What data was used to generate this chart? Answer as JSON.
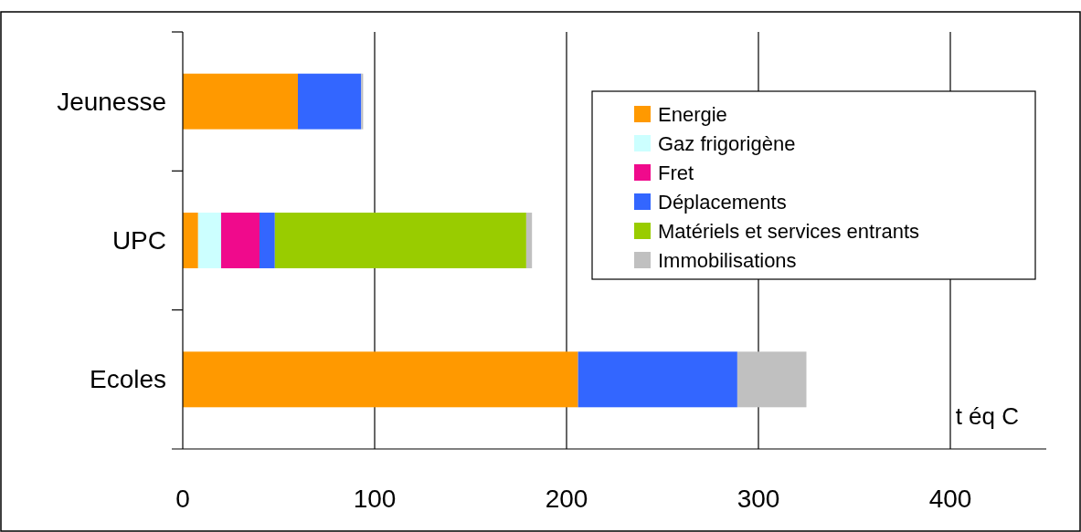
{
  "chart_data": {
    "type": "bar",
    "orientation": "horizontal",
    "stacked": true,
    "xlabel": "t éq C",
    "categories": [
      "Jeunesse",
      "UPC",
      "Ecoles"
    ],
    "series": [
      {
        "name": "Energie",
        "color": "#ff9900",
        "values": [
          60,
          8,
          206
        ]
      },
      {
        "name": "Gaz frigorigène",
        "color": "#ccffff",
        "values": [
          null,
          12,
          null
        ]
      },
      {
        "name": "Fret",
        "color": "#f00a8c",
        "values": [
          null,
          20,
          null
        ]
      },
      {
        "name": "Déplacements",
        "color": "#3366ff",
        "values": [
          33,
          8,
          83
        ]
      },
      {
        "name": "Matériels et services entrants",
        "color": "#99cc00",
        "values": [
          null,
          131,
          null
        ]
      },
      {
        "name": "Immobilisations",
        "color": "#c0c0c0",
        "values": [
          1,
          3,
          36
        ]
      }
    ],
    "xlim": [
      0,
      450
    ],
    "xticks": [
      0,
      100,
      200,
      300,
      400
    ],
    "grid": "x",
    "legend": "top right"
  }
}
